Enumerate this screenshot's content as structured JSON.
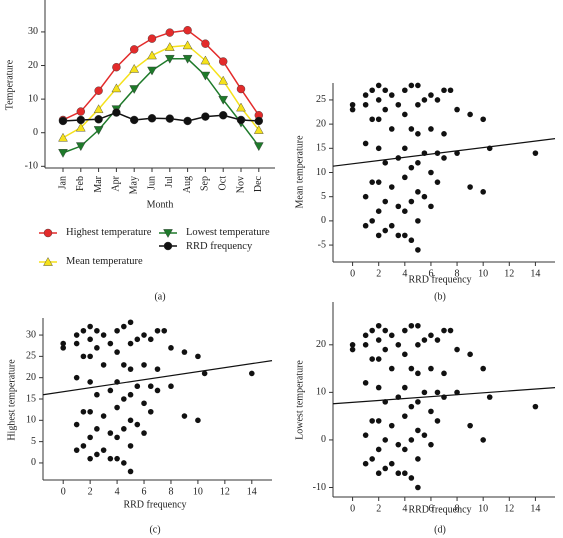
{
  "chart_data": [
    {
      "type": "line",
      "panel_label": "(a)",
      "x_label": "Month",
      "y_label": "Temperature",
      "categories": [
        "Jan",
        "Feb",
        "Mar",
        "Apr",
        "May",
        "Jun",
        "Jul",
        "Aug",
        "Sep",
        "Oct",
        "Nov",
        "Dec"
      ],
      "ylim": [
        -10.5,
        39.5
      ],
      "yticks": [
        -10,
        0,
        10,
        20,
        30
      ],
      "series": [
        {
          "name": "Highest temperature",
          "color": "#e32b2b",
          "marker": "circle",
          "values": [
            3.8,
            6.3,
            12.5,
            19.5,
            24.8,
            28,
            29.8,
            30.5,
            26.5,
            21.2,
            13,
            5.2
          ]
        },
        {
          "name": "Mean temperature",
          "color": "#f5e11b",
          "marker": "triangle-up",
          "values": [
            -1.5,
            1.5,
            7,
            13.2,
            19,
            23,
            25.5,
            26,
            21.5,
            15.5,
            7.5,
            0.8
          ]
        },
        {
          "name": "Lowest temperature",
          "color": "#1e7a2a",
          "marker": "triangle-down",
          "values": [
            -6,
            -4,
            0.8,
            7,
            13,
            18.5,
            22,
            22,
            17,
            9.8,
            3,
            -4
          ]
        },
        {
          "name": "RRD frequency",
          "color": "#111111",
          "marker": "circle",
          "values": [
            3.5,
            3.8,
            4,
            6,
            3.8,
            4.3,
            4.2,
            3.5,
            4.8,
            5.2,
            3.8,
            3.5
          ]
        }
      ]
    },
    {
      "type": "scatter",
      "panel_label": "(b)",
      "x_label": "RRD frequency",
      "y_label": "Mean temperature",
      "color": "#111111",
      "xlim": [
        -1.5,
        15.5
      ],
      "xticks": [
        0,
        2,
        4,
        6,
        8,
        10,
        12,
        14
      ],
      "ylim": [
        -8.5,
        28.5
      ],
      "yticks": [
        -5,
        0,
        5,
        10,
        15,
        20,
        25
      ],
      "x": [
        0,
        0,
        1,
        1,
        1,
        1,
        1,
        1.5,
        1.5,
        1.5,
        1.5,
        2,
        2,
        2,
        2,
        2,
        2,
        2,
        2.5,
        2.5,
        2.5,
        2.5,
        2.5,
        3,
        3,
        3,
        3,
        3.5,
        3.5,
        3.5,
        3.5,
        4,
        4,
        4,
        4,
        4,
        4,
        4.5,
        4.5,
        4.5,
        4.5,
        4.5,
        5,
        5,
        5,
        5,
        5,
        5,
        5,
        5.5,
        5.5,
        5.5,
        6,
        6,
        6,
        6,
        6.5,
        6.5,
        6.5,
        7,
        7,
        7,
        7.5,
        8,
        8,
        9,
        9,
        10,
        10,
        10.5,
        14
      ],
      "values": [
        24,
        23,
        26,
        24,
        16,
        5,
        -1,
        27,
        21,
        8,
        0,
        28,
        25,
        21,
        15,
        8,
        2,
        -3,
        27,
        23,
        12,
        4,
        -2,
        26,
        19,
        7,
        -1,
        24,
        13,
        3,
        -3,
        27,
        22,
        15,
        9,
        2,
        -3,
        28,
        19,
        11,
        4,
        -4,
        28,
        24,
        18,
        12,
        6,
        0,
        -6,
        25,
        14,
        5,
        26,
        19,
        10,
        3,
        25,
        14,
        8,
        27,
        18,
        13,
        27,
        23,
        14,
        22,
        7,
        21,
        6,
        15,
        14
      ],
      "trendline": {
        "x": [
          -1.5,
          15.5
        ],
        "y": [
          11.3,
          17
        ]
      }
    },
    {
      "type": "scatter",
      "panel_label": "(c)",
      "x_label": "RRD frequency",
      "y_label": "Highest temperature",
      "color": "#111111",
      "xlim": [
        -1.5,
        15.5
      ],
      "xticks": [
        0,
        2,
        4,
        6,
        8,
        10,
        12,
        14
      ],
      "ylim": [
        -4,
        34
      ],
      "yticks": [
        0,
        5,
        10,
        15,
        20,
        25,
        30
      ],
      "x": [
        0,
        0,
        1,
        1,
        1,
        1,
        1,
        1.5,
        1.5,
        1.5,
        1.5,
        2,
        2,
        2,
        2,
        2,
        2,
        2,
        2.5,
        2.5,
        2.5,
        2.5,
        2.5,
        3,
        3,
        3,
        3,
        3.5,
        3.5,
        3.5,
        3.5,
        4,
        4,
        4,
        4,
        4,
        4,
        4.5,
        4.5,
        4.5,
        4.5,
        4.5,
        5,
        5,
        5,
        5,
        5,
        5,
        5,
        5.5,
        5.5,
        5.5,
        6,
        6,
        6,
        6,
        6.5,
        6.5,
        6.5,
        7,
        7,
        7,
        7.5,
        8,
        8,
        9,
        9,
        10,
        10,
        10.5,
        14
      ],
      "values": [
        28,
        27,
        30,
        28,
        20,
        9,
        3,
        31,
        25,
        12,
        4,
        32,
        29,
        25,
        19,
        12,
        6,
        1,
        31,
        27,
        16,
        8,
        2,
        30,
        23,
        11,
        3,
        28,
        17,
        7,
        1,
        31,
        26,
        19,
        13,
        6,
        1,
        32,
        23,
        15,
        8,
        0,
        33,
        28,
        22,
        16,
        10,
        4,
        -2,
        29,
        18,
        9,
        30,
        23,
        14,
        7,
        29,
        18,
        12,
        31,
        22,
        17,
        31,
        27,
        18,
        26,
        11,
        25,
        10,
        21,
        21
      ],
      "trendline": {
        "x": [
          -1.5,
          15.5
        ],
        "y": [
          16,
          24
        ]
      }
    },
    {
      "type": "scatter",
      "panel_label": "(d)",
      "x_label": "RRD frequency",
      "y_label": "Lowest temperature",
      "color": "#111111",
      "xlim": [
        -1.5,
        15.5
      ],
      "xticks": [
        0,
        2,
        4,
        6,
        8,
        10,
        12,
        14
      ],
      "ylim": [
        -12,
        29
      ],
      "yticks": [
        -10,
        0,
        10,
        20
      ],
      "x": [
        0,
        0,
        1,
        1,
        1,
        1,
        1,
        1.5,
        1.5,
        1.5,
        1.5,
        2,
        2,
        2,
        2,
        2,
        2,
        2,
        2.5,
        2.5,
        2.5,
        2.5,
        2.5,
        3,
        3,
        3,
        3,
        3.5,
        3.5,
        3.5,
        3.5,
        4,
        4,
        4,
        4,
        4,
        4,
        4.5,
        4.5,
        4.5,
        4.5,
        4.5,
        5,
        5,
        5,
        5,
        5,
        5,
        5,
        5.5,
        5.5,
        5.5,
        6,
        6,
        6,
        6,
        6.5,
        6.5,
        6.5,
        7,
        7,
        7,
        7.5,
        8,
        8,
        9,
        9,
        10,
        10,
        10.5,
        14
      ],
      "values": [
        20,
        19,
        22,
        20,
        12,
        1,
        -5,
        23,
        17,
        4,
        -4,
        24,
        21,
        17,
        11,
        4,
        -2,
        -7,
        23,
        19,
        8,
        0,
        -6,
        22,
        15,
        3,
        -5,
        20,
        9,
        -1,
        -7,
        23,
        18,
        11,
        5,
        -2,
        -7,
        24,
        15,
        7,
        0,
        -8,
        24,
        20,
        14,
        8,
        2,
        -4,
        -10,
        21,
        10,
        1,
        22,
        15,
        6,
        -1,
        21,
        10,
        4,
        23,
        14,
        9,
        23,
        19,
        10,
        18,
        3,
        15,
        0,
        9,
        7
      ],
      "trendline": {
        "x": [
          -1.5,
          15.5
        ],
        "y": [
          7.6,
          11
        ]
      }
    }
  ]
}
